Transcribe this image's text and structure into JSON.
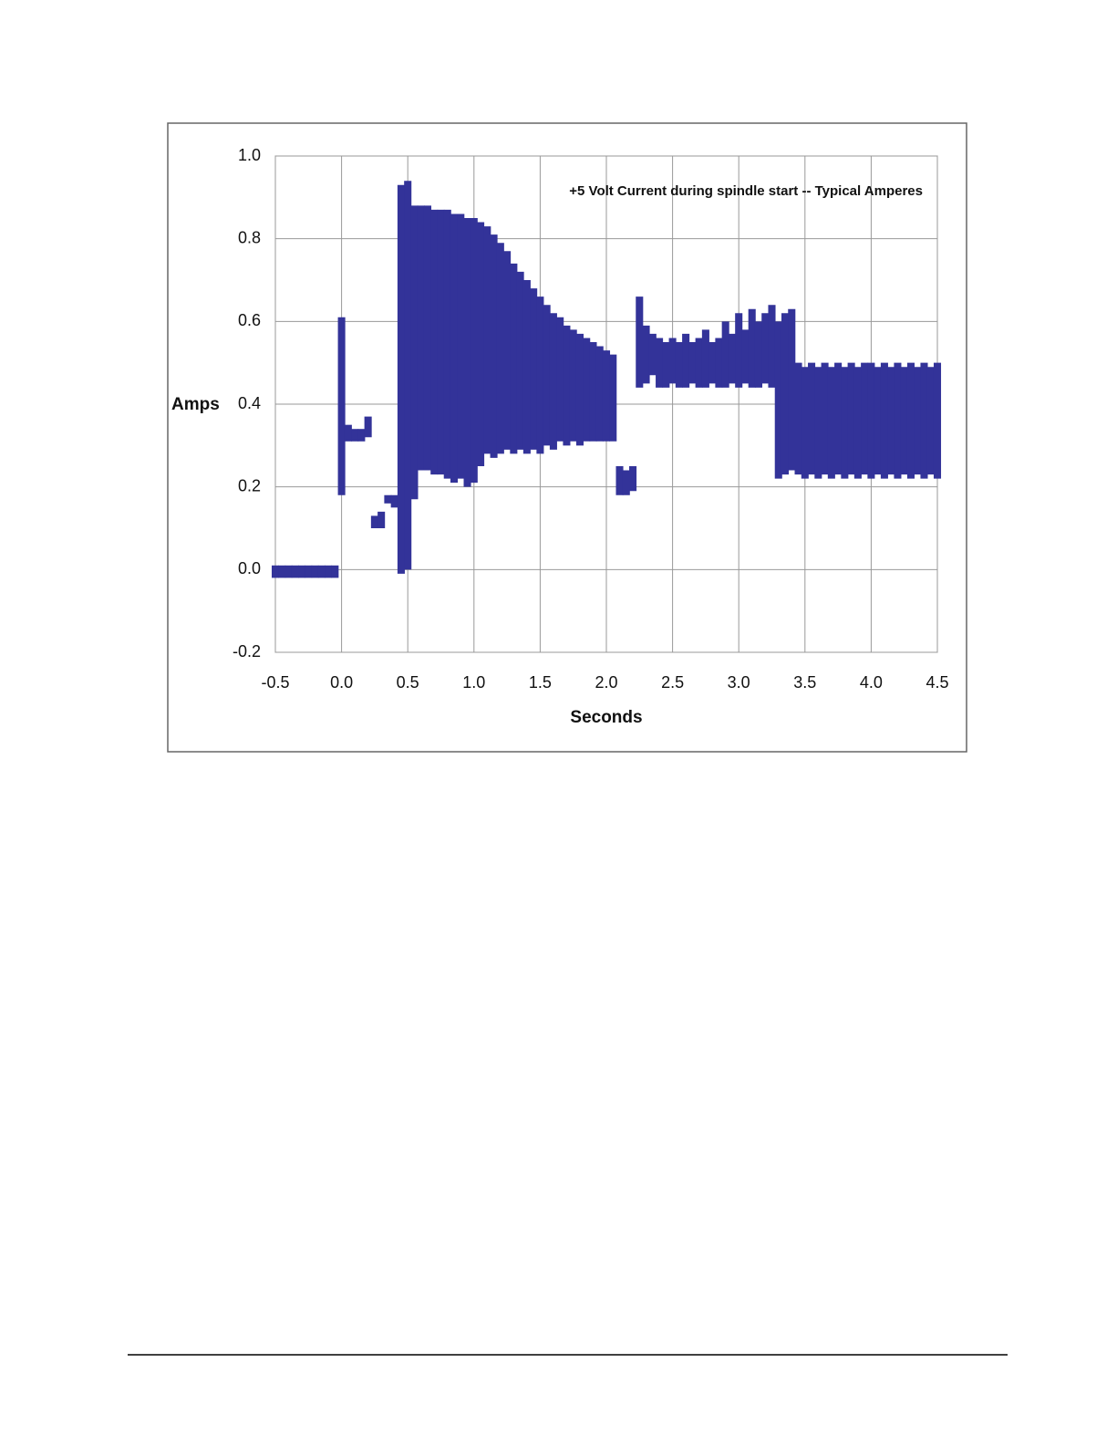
{
  "chart_data": {
    "type": "band",
    "title": "+5 Volt Current during spindle start -- Typical Amperes",
    "xlabel": "Seconds",
    "ylabel": "Amps",
    "x": [
      -0.5,
      -0.45,
      -0.4,
      -0.35,
      -0.3,
      -0.25,
      -0.2,
      -0.15,
      -0.1,
      -0.05,
      0,
      0.05,
      0.1,
      0.15,
      0.2,
      0.25,
      0.3,
      0.35,
      0.4,
      0.45,
      0.5,
      0.55,
      0.6,
      0.65,
      0.7,
      0.75,
      0.8,
      0.85,
      0.9,
      0.95,
      1.0,
      1.05,
      1.1,
      1.15,
      1.2,
      1.25,
      1.3,
      1.35,
      1.4,
      1.45,
      1.5,
      1.55,
      1.6,
      1.65,
      1.7,
      1.75,
      1.8,
      1.85,
      1.9,
      1.95,
      2.0,
      2.05,
      2.1,
      2.15,
      2.2,
      2.25,
      2.3,
      2.35,
      2.4,
      2.45,
      2.5,
      2.55,
      2.6,
      2.65,
      2.7,
      2.75,
      2.8,
      2.85,
      2.9,
      2.95,
      3.0,
      3.05,
      3.1,
      3.15,
      3.2,
      3.25,
      3.3,
      3.35,
      3.4,
      3.45,
      3.5,
      3.55,
      3.6,
      3.65,
      3.7,
      3.75,
      3.8,
      3.85,
      3.9,
      3.95,
      4.0,
      4.05,
      4.1,
      4.15,
      4.2,
      4.25,
      4.3,
      4.35,
      4.4,
      4.45,
      4.5
    ],
    "series": [
      {
        "color": "#333399",
        "values": [
          0.01,
          0.01,
          0.01,
          0.01,
          0.01,
          0.01,
          0.01,
          0.01,
          0.01,
          0.01,
          0.61,
          0.35,
          0.34,
          0.34,
          0.37,
          0.13,
          0.14,
          0.18,
          0.18,
          0.93,
          0.94,
          0.88,
          0.88,
          0.88,
          0.87,
          0.87,
          0.87,
          0.86,
          0.86,
          0.85,
          0.85,
          0.84,
          0.83,
          0.81,
          0.79,
          0.77,
          0.74,
          0.72,
          0.7,
          0.68,
          0.66,
          0.64,
          0.62,
          0.61,
          0.59,
          0.58,
          0.57,
          0.56,
          0.55,
          0.54,
          0.53,
          0.52,
          0.25,
          0.24,
          0.25,
          0.66,
          0.59,
          0.57,
          0.56,
          0.55,
          0.56,
          0.55,
          0.57,
          0.55,
          0.56,
          0.58,
          0.55,
          0.56,
          0.6,
          0.57,
          0.62,
          0.58,
          0.63,
          0.6,
          0.62,
          0.64,
          0.6,
          0.62,
          0.63,
          0.5,
          0.49,
          0.5,
          0.49,
          0.5,
          0.49,
          0.5,
          0.49,
          0.5,
          0.49,
          0.5,
          0.5,
          0.49,
          0.5,
          0.49,
          0.5,
          0.49,
          0.5,
          0.49,
          0.5,
          0.49,
          0.5
        ]
      },
      {
        "color": "#333399",
        "values": [
          -0.02,
          -0.02,
          -0.02,
          -0.02,
          -0.02,
          -0.02,
          -0.02,
          -0.02,
          -0.02,
          -0.02,
          0.18,
          0.31,
          0.31,
          0.31,
          0.32,
          0.1,
          0.1,
          0.16,
          0.15,
          -0.01,
          0.0,
          0.17,
          0.24,
          0.24,
          0.23,
          0.23,
          0.22,
          0.21,
          0.22,
          0.2,
          0.21,
          0.25,
          0.28,
          0.27,
          0.28,
          0.29,
          0.28,
          0.29,
          0.28,
          0.29,
          0.28,
          0.3,
          0.29,
          0.31,
          0.3,
          0.31,
          0.3,
          0.31,
          0.31,
          0.31,
          0.31,
          0.31,
          0.18,
          0.18,
          0.19,
          0.44,
          0.45,
          0.47,
          0.44,
          0.44,
          0.45,
          0.44,
          0.44,
          0.45,
          0.44,
          0.44,
          0.45,
          0.44,
          0.44,
          0.45,
          0.44,
          0.45,
          0.44,
          0.44,
          0.45,
          0.44,
          0.22,
          0.23,
          0.24,
          0.23,
          0.22,
          0.23,
          0.22,
          0.23,
          0.22,
          0.23,
          0.22,
          0.23,
          0.22,
          0.23,
          0.22,
          0.23,
          0.22,
          0.23,
          0.22,
          0.23,
          0.22,
          0.23,
          0.22,
          0.23,
          0.22
        ]
      }
    ],
    "xlim": [
      -0.5,
      4.5
    ],
    "xticks": [
      -0.5,
      {
        "value": 0,
        "label": "0.0"
      },
      0.5,
      {
        "value": 1,
        "label": "1.0"
      },
      1.5,
      {
        "value": 2,
        "label": "2.0"
      },
      2.5,
      {
        "value": 3,
        "label": "3.0"
      },
      3.5,
      {
        "value": 4,
        "label": "4.0"
      },
      4.5
    ],
    "ylim": [
      -0.2,
      1.0
    ],
    "yticks": [
      -0.2,
      {
        "value": 0,
        "label": "0.0"
      },
      0.2,
      0.4,
      0.6,
      0.8,
      {
        "value": 1,
        "label": "1.0"
      }
    ],
    "grid": true
  }
}
